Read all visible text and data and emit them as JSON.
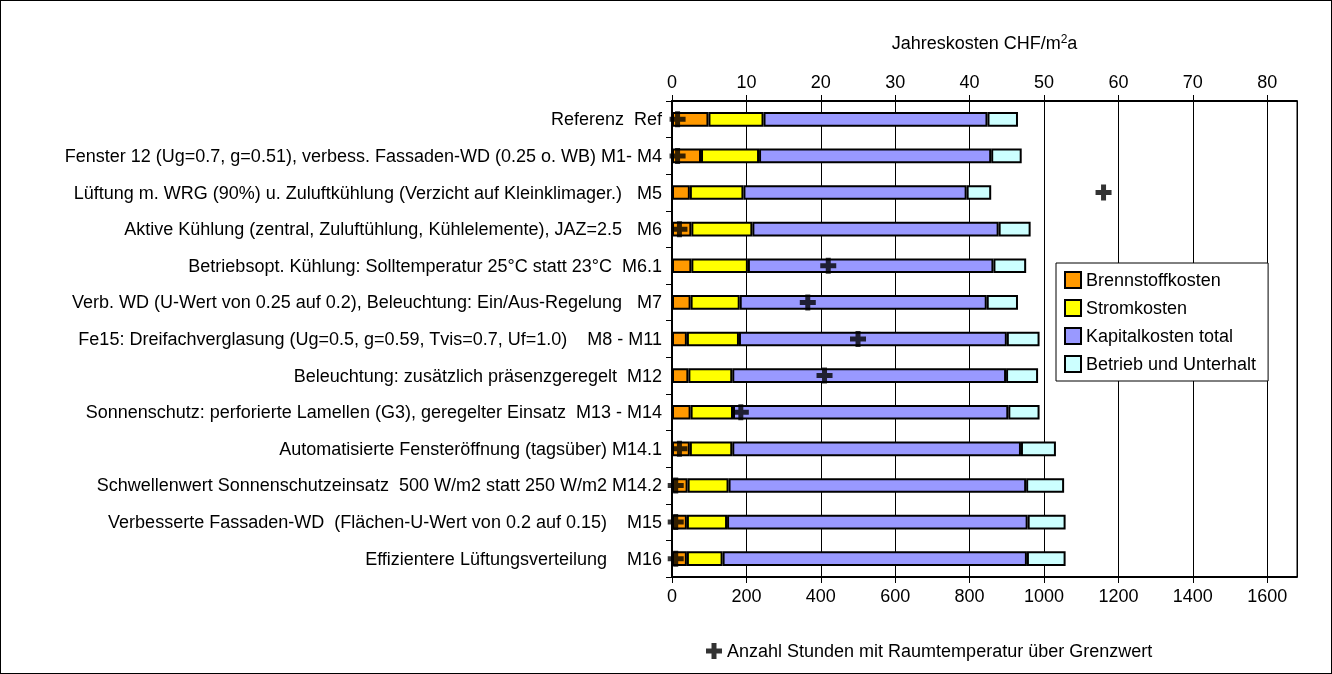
{
  "chart_data": {
    "type": "bar",
    "orientation": "horizontal",
    "stacked": true,
    "x2label": "Jahreskosten CHF/m$^{2}$a",
    "categories": [
      "Referenz  Ref",
      "Fenster 12 (Ug=0.7, g=0.51), verbess. Fassaden-WD (0.25 o. WB) M1- M4",
      "Lüftung m. WRG (90%) u. Zuluftkühlung (Verzicht auf Kleinklimager.)   M5",
      "Aktive Kühlung (zentral, Zuluftühlung, Kühlelemente), JAZ=2.5   M6",
      "Betriebsopt. Kühlung: Solltemperatur 25°C statt 23°C  M6.1",
      "Verb. WD (U-Wert von 0.25 auf 0.2), Beleuchtung: Ein/Aus-Regelung   M7",
      "Fe15: Dreifachverglasung (Ug=0.5, g=0.59, Tvis=0.7, Uf=1.0)    M8 - M11",
      "Beleuchtung: zusätzlich präsenzgeregelt  M12",
      "Sonnenschutz: perforierte Lamellen (G3), geregelter Einsatz  M13 - M14",
      "Automatisierte Fensteröffnung (tagsüber) M14.1",
      "Schwellenwert Sonnenschutzeinsatz  500 W/m2 statt 250 W/m2 M14.2",
      "Verbesserte Fassaden-WD  (Flächen-U-Wert von 0.2 auf 0.15)    M15",
      "Effizientere Lüftungsverteilung    M16"
    ],
    "series": [
      {
        "name": "Brennstoffkosten",
        "color": "#ff9900",
        "axis": "x2",
        "values": [
          4.9,
          3.9,
          2.4,
          2.6,
          2.6,
          2.5,
          2.0,
          2.2,
          2.5,
          2.4,
          2.1,
          2.0,
          2.0
        ]
      },
      {
        "name": "Stromkosten",
        "color": "#ffff00",
        "axis": "x2",
        "values": [
          7.4,
          7.8,
          7.2,
          8.2,
          7.6,
          6.6,
          7.0,
          5.9,
          5.7,
          5.7,
          5.5,
          5.4,
          4.8
        ]
      },
      {
        "name": "Kapitalkosten total",
        "color": "#9999ff",
        "axis": "x2",
        "values": [
          30.1,
          31.2,
          30.0,
          33.1,
          33.0,
          33.2,
          36.0,
          36.8,
          37.0,
          38.8,
          40.0,
          40.4,
          40.9
        ]
      },
      {
        "name": "Betrieb und Unterhalt",
        "color": "#ccffff",
        "axis": "x2",
        "values": [
          4.1,
          4.1,
          3.3,
          4.3,
          4.4,
          4.2,
          4.4,
          4.3,
          4.2,
          4.7,
          5.1,
          5.1,
          5.2
        ]
      },
      {
        "name": "Anzahl Stunden mit Raumtemperatur über Grenzwert",
        "type": "scatter",
        "color": "#000000",
        "marker": "cross",
        "values": [
          15,
          15,
          1160,
          20,
          420,
          365,
          500,
          410,
          185,
          20,
          10,
          10,
          10
        ]
      }
    ],
    "xlim": [
      0,
      1680
    ],
    "xticks": [
      0,
      200,
      400,
      600,
      800,
      1000,
      1200,
      1400,
      1600
    ],
    "x2lim": [
      0,
      84
    ],
    "x2ticks": [
      0,
      10,
      20,
      30,
      40,
      50,
      60,
      70,
      80
    ],
    "grid": "x2",
    "legend": "right"
  }
}
